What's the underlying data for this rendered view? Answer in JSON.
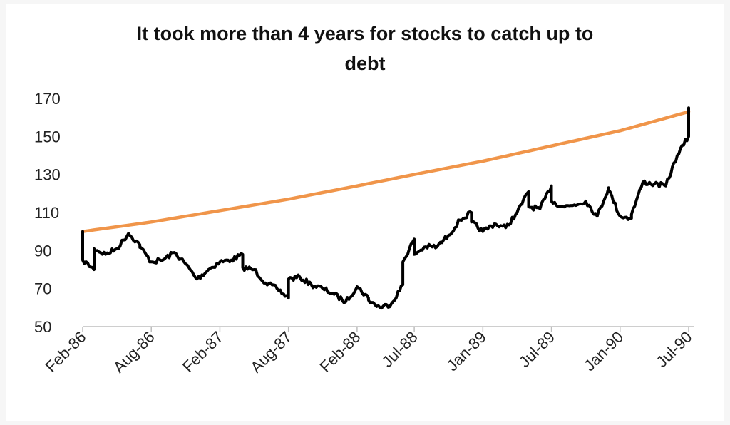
{
  "chart_data": {
    "type": "line",
    "title_lines": [
      "It took more than 4 years for stocks to catch up to",
      "debt"
    ],
    "xlabel": "",
    "ylabel": "",
    "ylim": [
      50,
      170
    ],
    "y_ticks": [
      50,
      70,
      90,
      110,
      130,
      150,
      170
    ],
    "x_range": [
      "Feb-86",
      "Jul-90"
    ],
    "x_ticks": [
      "Feb-86",
      "Aug-86",
      "Feb-87",
      "Aug-87",
      "Feb-88",
      "Jul-88",
      "Jan-89",
      "Jul-89",
      "Jan-90",
      "Jul-90"
    ],
    "grid": false,
    "legend": "none",
    "series": [
      {
        "color": "#f0954a",
        "style": "smooth",
        "points": [
          [
            "Feb-86",
            100
          ],
          [
            "Aug-86",
            105
          ],
          [
            "Feb-87",
            111
          ],
          [
            "Aug-87",
            117
          ],
          [
            "Feb-88",
            124
          ],
          [
            "Jul-88",
            130
          ],
          [
            "Jan-89",
            137
          ],
          [
            "Jul-89",
            145
          ],
          [
            "Jan-90",
            153
          ],
          [
            "Jul-90",
            163
          ]
        ]
      },
      {
        "color": "#000000",
        "style": "jagged",
        "points": [
          [
            "Feb-86",
            100
          ],
          [
            "Feb-86",
            85
          ],
          [
            "Mar-86",
            80
          ],
          [
            "Mar-86",
            91
          ],
          [
            "Apr-86",
            88
          ],
          [
            "May-86",
            91
          ],
          [
            "Jun-86",
            99
          ],
          [
            "Jul-86",
            93
          ],
          [
            "Jul-86",
            92
          ],
          [
            "Aug-86",
            84
          ],
          [
            "Sep-86",
            85
          ],
          [
            "Oct-86",
            89
          ],
          [
            "Nov-86",
            83
          ],
          [
            "Dec-86",
            75
          ],
          [
            "Jan-87",
            80
          ],
          [
            "Feb-87",
            84
          ],
          [
            "Mar-87",
            85
          ],
          [
            "Apr-87",
            88
          ],
          [
            "Apr-87",
            81
          ],
          [
            "May-87",
            80
          ],
          [
            "Jun-87",
            73
          ],
          [
            "Jul-87",
            70
          ],
          [
            "Aug-87",
            65
          ],
          [
            "Aug-87",
            75
          ],
          [
            "Sep-87",
            76
          ],
          [
            "Oct-87",
            72
          ],
          [
            "Nov-87",
            70
          ],
          [
            "Dec-87",
            67
          ],
          [
            "Jan-88",
            63
          ],
          [
            "Feb-88",
            71
          ],
          [
            "Mar-88",
            65
          ],
          [
            "Mar-88",
            64
          ],
          [
            "Apr-88",
            60
          ],
          [
            "May-88",
            62
          ],
          [
            "Jun-88",
            72
          ],
          [
            "Jun-88",
            84
          ],
          [
            "Jul-88",
            96
          ],
          [
            "Jul-88",
            88
          ],
          [
            "Aug-88",
            92
          ],
          [
            "Sep-88",
            92
          ],
          [
            "Oct-88",
            98
          ],
          [
            "Nov-88",
            106
          ],
          [
            "Dec-88",
            110
          ],
          [
            "Dec-88",
            105
          ],
          [
            "Jan-89",
            100
          ],
          [
            "Feb-89",
            104
          ],
          [
            "Mar-89",
            102
          ],
          [
            "Apr-89",
            110
          ],
          [
            "May-89",
            121
          ],
          [
            "May-89",
            113
          ],
          [
            "Jun-89",
            112
          ],
          [
            "Jul-89",
            124
          ],
          [
            "Jul-89",
            116
          ],
          [
            "Aug-89",
            113
          ],
          [
            "Sep-89",
            114
          ],
          [
            "Oct-89",
            116
          ],
          [
            "Nov-89",
            108
          ],
          [
            "Dec-89",
            123
          ],
          [
            "Dec-89",
            122
          ],
          [
            "Jan-90",
            108
          ],
          [
            "Feb-90",
            107
          ],
          [
            "Feb-90",
            109
          ],
          [
            "Mar-90",
            126
          ],
          [
            "Apr-90",
            125
          ],
          [
            "May-90",
            124
          ],
          [
            "Jun-90",
            140
          ],
          [
            "Jul-90",
            150
          ],
          [
            "Jul-90",
            165
          ]
        ]
      }
    ]
  }
}
